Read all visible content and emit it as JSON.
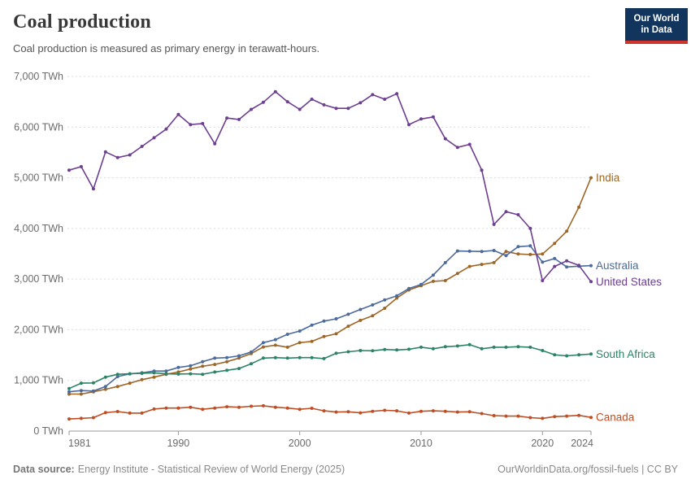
{
  "header": {
    "title": "Coal production",
    "subtitle": "Coal production is measured as primary energy in terawatt-hours.",
    "logo": {
      "line1": "Our World",
      "line2": "in Data",
      "bg_color": "#12355E",
      "accent_color": "#D0342C"
    }
  },
  "footer": {
    "source_label": "Data source:",
    "source_text": "Energy Institute - Statistical Review of World Energy (2025)",
    "credit": "OurWorldinData.org/fossil-fuels | CC BY"
  },
  "chart_data": {
    "type": "line",
    "title": "Coal production",
    "ylabel": "",
    "xlabel": "",
    "y_unit": "TWh",
    "ylim": [
      0,
      7000
    ],
    "y_ticks": [
      0,
      1000,
      2000,
      3000,
      4000,
      5000,
      6000,
      7000
    ],
    "x_start": 1981,
    "x_end": 2024,
    "x_ticks": [
      1981,
      1990,
      2000,
      2010,
      2020,
      2024
    ],
    "grid": "horizontal-dashed",
    "legend_position": "right-end-labels",
    "colors": {
      "grid": "#dcdcdc",
      "axis": "#999999",
      "tick_text": "#6b6b6b"
    },
    "series": [
      {
        "name": "India",
        "color": "#9E6626",
        "values": [
          730,
          730,
          775,
          825,
          880,
          945,
          1015,
          1065,
          1120,
          1165,
          1225,
          1280,
          1315,
          1370,
          1440,
          1530,
          1660,
          1695,
          1655,
          1745,
          1770,
          1865,
          1920,
          2070,
          2185,
          2275,
          2425,
          2625,
          2785,
          2870,
          2955,
          2970,
          3110,
          3250,
          3290,
          3325,
          3545,
          3495,
          3485,
          3495,
          3705,
          3945,
          4420,
          5000
        ]
      },
      {
        "name": "Australia",
        "color": "#4C6A9C",
        "values": [
          775,
          800,
          790,
          880,
          1075,
          1130,
          1150,
          1185,
          1185,
          1255,
          1290,
          1370,
          1440,
          1450,
          1485,
          1560,
          1745,
          1805,
          1910,
          1975,
          2090,
          2170,
          2215,
          2305,
          2400,
          2490,
          2590,
          2670,
          2815,
          2895,
          3080,
          3325,
          3555,
          3550,
          3545,
          3565,
          3465,
          3640,
          3655,
          3335,
          3405,
          3240,
          3255,
          3265
        ]
      },
      {
        "name": "United States",
        "color": "#6D3E91",
        "values": [
          5150,
          5220,
          4780,
          5510,
          5400,
          5450,
          5620,
          5790,
          5960,
          6250,
          6050,
          6070,
          5670,
          6180,
          6150,
          6350,
          6490,
          6700,
          6500,
          6350,
          6550,
          6440,
          6370,
          6370,
          6480,
          6640,
          6550,
          6660,
          6050,
          6160,
          6200,
          5770,
          5600,
          5660,
          5150,
          4080,
          4330,
          4270,
          4000,
          2970,
          3250,
          3360,
          3270,
          2950
        ]
      },
      {
        "name": "South Africa",
        "color": "#2C8465",
        "values": [
          840,
          945,
          950,
          1065,
          1120,
          1130,
          1140,
          1150,
          1130,
          1125,
          1130,
          1120,
          1165,
          1200,
          1235,
          1330,
          1440,
          1450,
          1440,
          1450,
          1450,
          1430,
          1535,
          1565,
          1590,
          1585,
          1610,
          1600,
          1615,
          1655,
          1625,
          1665,
          1680,
          1705,
          1625,
          1655,
          1655,
          1665,
          1655,
          1590,
          1505,
          1485,
          1505,
          1520
        ]
      },
      {
        "name": "Canada",
        "color": "#BE4E24",
        "values": [
          240,
          250,
          265,
          365,
          385,
          355,
          355,
          435,
          455,
          455,
          470,
          430,
          455,
          480,
          470,
          490,
          500,
          470,
          455,
          430,
          450,
          400,
          375,
          380,
          360,
          390,
          410,
          400,
          355,
          390,
          400,
          390,
          375,
          380,
          345,
          305,
          295,
          295,
          265,
          250,
          285,
          295,
          310,
          270
        ]
      }
    ]
  }
}
